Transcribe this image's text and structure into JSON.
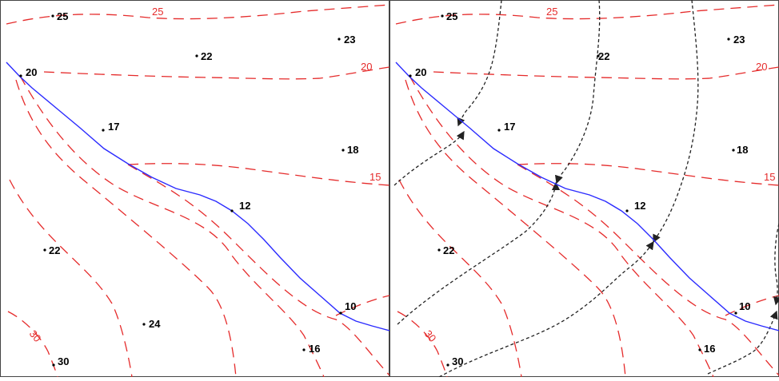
{
  "colors": {
    "contour": "#e52b2b",
    "stream": "#2b2bff",
    "flow_line": "#222222",
    "point": "#000000",
    "frame": "#444444"
  },
  "left_panel": {
    "points": [
      {
        "label": "25"
      },
      {
        "label": "22"
      },
      {
        "label": "23"
      },
      {
        "label": "20"
      },
      {
        "label": "17"
      },
      {
        "label": "18"
      },
      {
        "label": "12"
      },
      {
        "label": "22"
      },
      {
        "label": "10"
      },
      {
        "label": "24"
      },
      {
        "label": "30"
      },
      {
        "label": "16"
      }
    ],
    "contour_labels": [
      "25",
      "20",
      "15",
      "30"
    ]
  },
  "right_panel": {
    "points": [
      {
        "label": "25"
      },
      {
        "label": "22"
      },
      {
        "label": "23"
      },
      {
        "label": "20"
      },
      {
        "label": "17"
      },
      {
        "label": "18"
      },
      {
        "label": "12"
      },
      {
        "label": "22"
      },
      {
        "label": "10"
      },
      {
        "label": "30"
      },
      {
        "label": "16"
      }
    ],
    "contour_labels": [
      "25",
      "20",
      "15",
      "30"
    ]
  }
}
